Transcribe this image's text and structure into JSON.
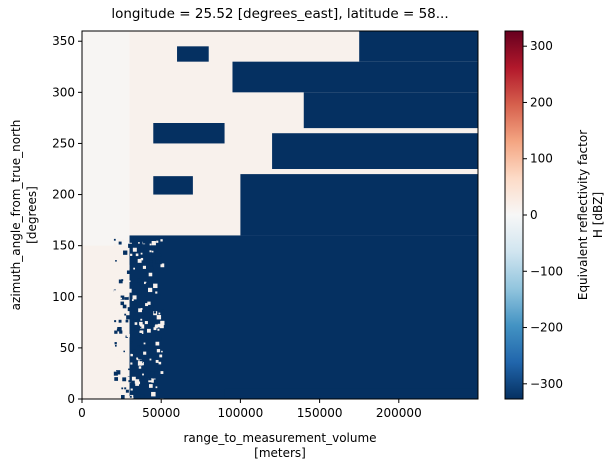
{
  "chart_data": {
    "type": "heatmap",
    "title": "longitude = 25.52 [degrees_east], latitude = 58...",
    "xlabel_line1": "range_to_measurement_volume",
    "xlabel_line2": "[meters]",
    "ylabel_line1": "azimuth_angle_from_true_north",
    "ylabel_line2": "[degrees]",
    "colorbar_label_line1": "Equivalent reflectivity factor",
    "colorbar_label_line2": "H [dBZ]",
    "x_ticks": [
      0,
      50000,
      100000,
      150000,
      200000
    ],
    "x_tick_labels": [
      "0",
      "50000",
      "100000",
      "150000",
      "200000"
    ],
    "y_ticks": [
      0,
      50,
      100,
      150,
      200,
      250,
      300,
      350
    ],
    "y_tick_labels": [
      "0",
      "50",
      "100",
      "150",
      "200",
      "250",
      "300",
      "350"
    ],
    "colorbar_ticks": [
      -300,
      -200,
      -100,
      0,
      100,
      200,
      300
    ],
    "colorbar_tick_labels": [
      "−300",
      "−200",
      "−100",
      "0",
      "100",
      "200",
      "300"
    ],
    "xlim": [
      0,
      250000
    ],
    "ylim": [
      0,
      360
    ],
    "clim": [
      -327,
      327
    ],
    "colormap": "RdBu_r",
    "colormap_stops": [
      "#053061",
      "#2166ac",
      "#4393c3",
      "#92c5de",
      "#d1e5f0",
      "#f7f7f7",
      "#fddbc7",
      "#f4a582",
      "#d6604d",
      "#b2182b",
      "#67001f"
    ],
    "grid": false,
    "background_value_dBZ": 15,
    "masked_value_dBZ": -327,
    "regions": [
      {
        "kind": "masked",
        "range_start": 30000,
        "range_end": 250000,
        "az_start": 0,
        "az_end": 160,
        "note": "large dark region beyond near range"
      },
      {
        "kind": "masked",
        "range_start": 90000,
        "range_end": 250000,
        "az_start": 0,
        "az_end": 10
      },
      {
        "kind": "masked",
        "range_start": 100000,
        "range_end": 250000,
        "az_start": 160,
        "az_end": 220
      },
      {
        "kind": "masked",
        "range_start": 120000,
        "range_end": 250000,
        "az_start": 225,
        "az_end": 260
      },
      {
        "kind": "masked",
        "range_start": 140000,
        "range_end": 250000,
        "az_start": 265,
        "az_end": 300
      },
      {
        "kind": "masked",
        "range_start": 95000,
        "range_end": 250000,
        "az_start": 300,
        "az_end": 330
      },
      {
        "kind": "masked",
        "range_start": 175000,
        "range_end": 250000,
        "az_start": 330,
        "az_end": 360
      },
      {
        "kind": "masked",
        "range_start": 45000,
        "range_end": 70000,
        "az_start": 200,
        "az_end": 218
      },
      {
        "kind": "masked",
        "range_start": 45000,
        "range_end": 90000,
        "az_start": 250,
        "az_end": 270
      },
      {
        "kind": "masked",
        "range_start": 60000,
        "range_end": 80000,
        "az_start": 330,
        "az_end": 345
      },
      {
        "kind": "weak",
        "range_start": 0,
        "range_end": 30000,
        "az_start": 150,
        "az_end": 360
      }
    ]
  }
}
